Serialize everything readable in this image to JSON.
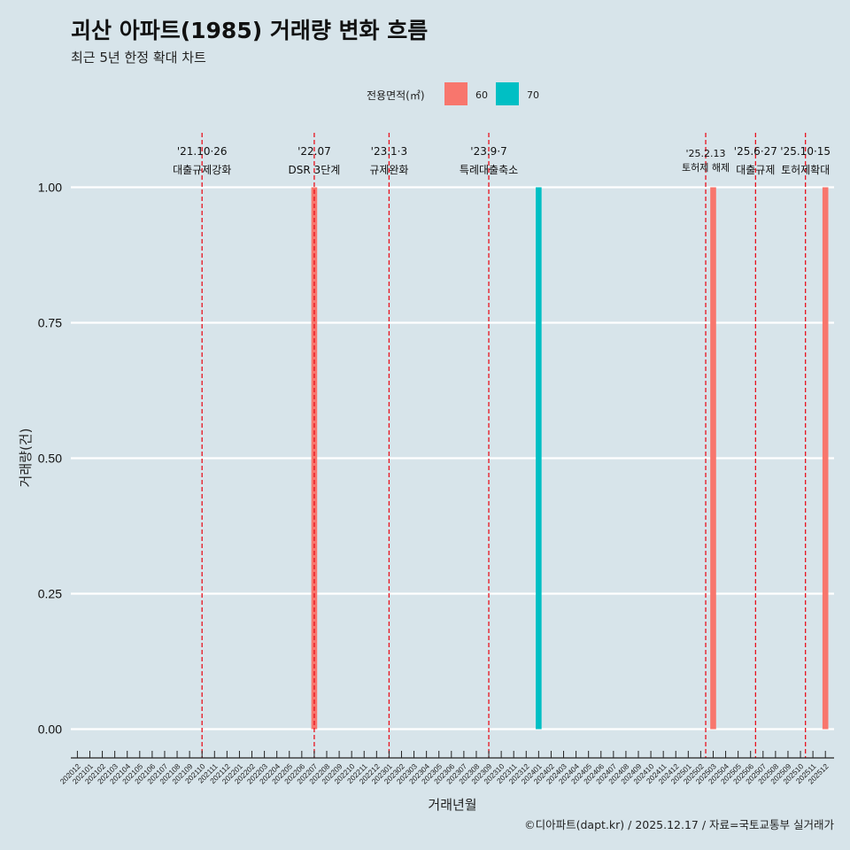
{
  "chart_data": {
    "type": "bar",
    "title": "괴산 아파트(1985) 거래량 변화 흐름",
    "subtitle": "최근 5년 한정 확대 차트",
    "xlabel": "거래년월",
    "ylabel": "거래량(건)",
    "ylim": [
      0,
      1
    ],
    "yticks": [
      "0.00",
      "0.25",
      "0.50",
      "0.75",
      "1.00"
    ],
    "ytick_values": [
      0,
      0.25,
      0.5,
      0.75,
      1
    ],
    "legend": {
      "title": "전용면적(㎡)",
      "position": "top"
    },
    "categories": [
      "202012",
      "202101",
      "202102",
      "202103",
      "202104",
      "202105",
      "202106",
      "202107",
      "202108",
      "202109",
      "202110",
      "202111",
      "202112",
      "202201",
      "202202",
      "202203",
      "202204",
      "202205",
      "202206",
      "202207",
      "202208",
      "202209",
      "202210",
      "202211",
      "202212",
      "202301",
      "202302",
      "202303",
      "202304",
      "202305",
      "202306",
      "202307",
      "202308",
      "202309",
      "202310",
      "202311",
      "202312",
      "202401",
      "202402",
      "202403",
      "202404",
      "202405",
      "202406",
      "202407",
      "202408",
      "202409",
      "202410",
      "202411",
      "202412",
      "202501",
      "202502",
      "202503",
      "202504",
      "202505",
      "202506",
      "202507",
      "202508",
      "202509",
      "202510",
      "202511",
      "202512"
    ],
    "series": [
      {
        "name": "60",
        "color": "#f8766d",
        "points": [
          {
            "x": "202207",
            "y": 1
          },
          {
            "x": "202503",
            "y": 1
          },
          {
            "x": "202512",
            "y": 1
          }
        ]
      },
      {
        "name": "70",
        "color": "#00bfc4",
        "points": [
          {
            "x": "202401",
            "y": 1
          }
        ]
      }
    ],
    "annotations": [
      {
        "x": 10.0,
        "date": "'21.10·26",
        "label": "대출규제강화",
        "small": false
      },
      {
        "x": 19.0,
        "date": "'22.07",
        "label": "DSR 3단계",
        "small": false
      },
      {
        "x": 25.0,
        "date": "'23.1·3",
        "label": "규제완화",
        "small": false
      },
      {
        "x": 33.0,
        "date": "'23.9·7",
        "label": "특례대출축소",
        "small": false
      },
      {
        "x": 50.4,
        "date": "'25.2.13",
        "label": "토허제 해제",
        "small": true
      },
      {
        "x": 54.4,
        "date": "'25.6·27",
        "label": "대출규제",
        "small": false
      },
      {
        "x": 58.4,
        "date": "'25.10·15",
        "label": "토허제확대",
        "small": false
      }
    ]
  },
  "caption": "©디아파트(dapt.kr) / 2025.12.17 / 자료=국토교통부 실거래가"
}
